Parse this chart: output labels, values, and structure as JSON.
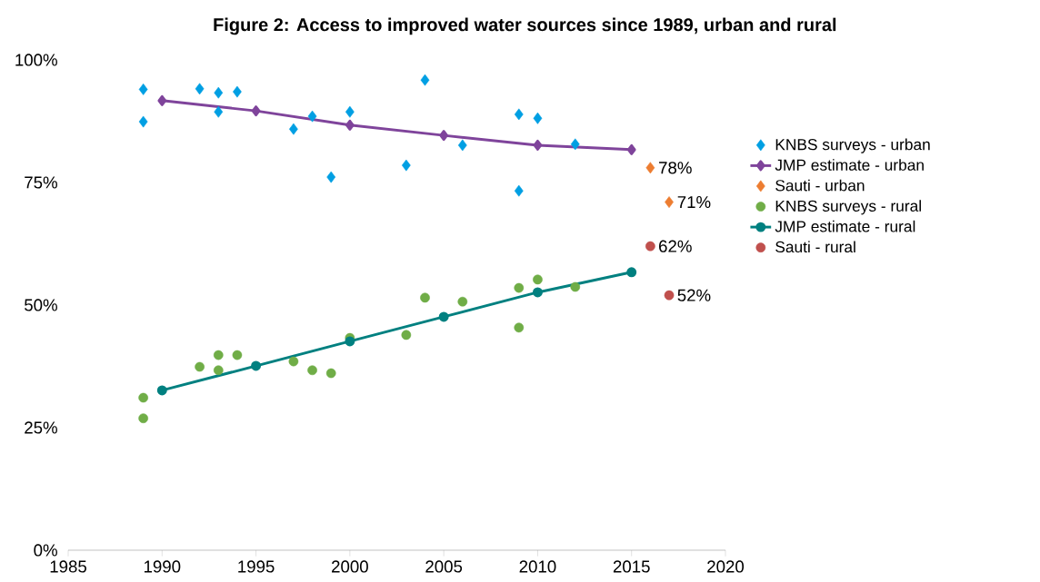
{
  "chart_data": {
    "type": "scatter",
    "title": "Figure 2: Access to improved water sources since 1989, urban and rural",
    "xlim": [
      1985,
      2020
    ],
    "xticks": [
      1985,
      1990,
      1995,
      2000,
      2005,
      2010,
      2015,
      2020
    ],
    "ylim": [
      0,
      100
    ],
    "yticks": [
      {
        "value": 0,
        "label": "0%"
      },
      {
        "value": 25,
        "label": "25%"
      },
      {
        "value": 50,
        "label": "50%"
      },
      {
        "value": 75,
        "label": "75%"
      },
      {
        "value": 100,
        "label": "100%"
      }
    ],
    "legend": "right",
    "series": [
      {
        "name": "KNBS surveys - urban",
        "marker": "diamond",
        "color": "#009fe3",
        "x": [
          1989,
          1989,
          1992,
          1993,
          1993,
          1994,
          1997,
          1998,
          1999,
          2000,
          2003,
          2004,
          2006,
          2009,
          2009,
          2010,
          2012
        ],
        "values": [
          94.0,
          87.4,
          94.1,
          93.3,
          89.4,
          93.5,
          85.9,
          88.5,
          76.1,
          89.4,
          78.5,
          95.9,
          82.6,
          88.9,
          73.3,
          88.1,
          82.8
        ]
      },
      {
        "name": "JMP estimate - urban",
        "type": "line",
        "marker": "diamond",
        "color": "#7f449b",
        "x": [
          1990,
          1995,
          2000,
          2005,
          2010,
          2015
        ],
        "values": [
          91.7,
          89.6,
          86.7,
          84.6,
          82.6,
          81.7
        ]
      },
      {
        "name": "Sauti - urban",
        "marker": "diamond",
        "color": "#ed7d31",
        "x": [
          2016,
          2017
        ],
        "values": [
          78,
          71
        ],
        "value_labels": [
          "78%",
          "71%"
        ]
      },
      {
        "name": "KNBS surveys - rural",
        "marker": "circle",
        "color": "#70ad47",
        "x": [
          1989,
          1989,
          1992,
          1993,
          1993,
          1994,
          1997,
          1998,
          1999,
          2000,
          2003,
          2004,
          2006,
          2009,
          2009,
          2010,
          2012
        ],
        "values": [
          31.1,
          26.9,
          37.4,
          39.8,
          36.7,
          39.8,
          38.5,
          36.7,
          36.1,
          43.3,
          43.9,
          51.5,
          50.7,
          53.5,
          45.4,
          55.2,
          53.7
        ]
      },
      {
        "name": "JMP estimate - rural",
        "type": "line",
        "marker": "circle",
        "color": "#008080",
        "x": [
          1990,
          1995,
          2000,
          2005,
          2010,
          2015
        ],
        "values": [
          32.6,
          37.6,
          42.6,
          47.6,
          52.6,
          56.7
        ]
      },
      {
        "name": "Sauti - rural",
        "marker": "circle",
        "color": "#c0504d",
        "x": [
          2016,
          2017
        ],
        "values": [
          62,
          52
        ],
        "value_labels": [
          "62%",
          "52%"
        ]
      }
    ]
  }
}
